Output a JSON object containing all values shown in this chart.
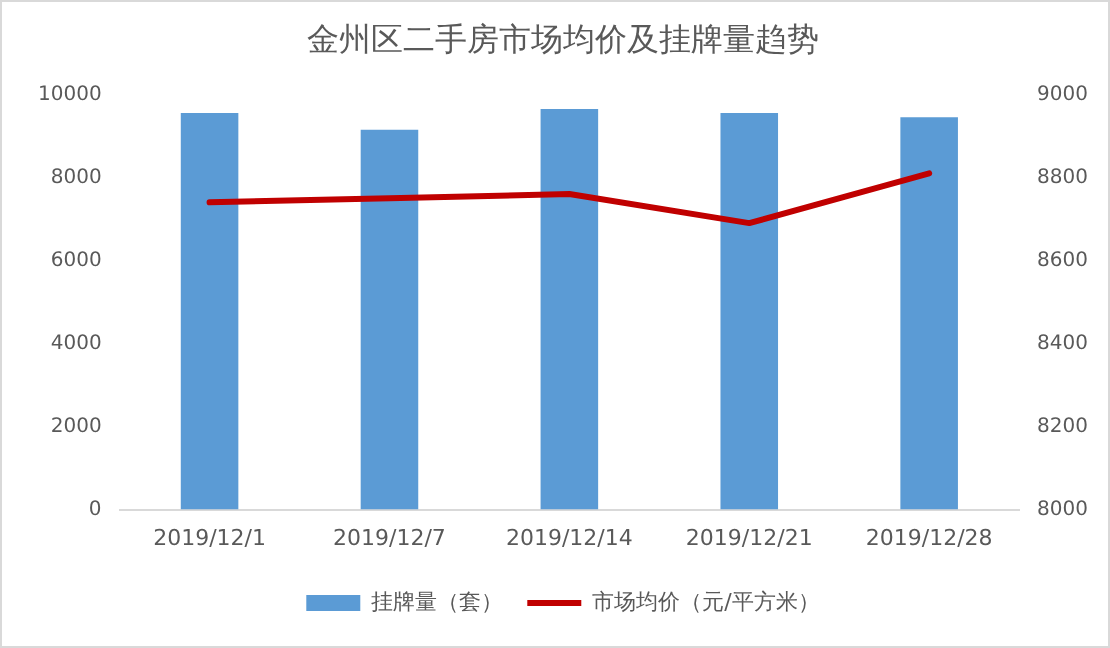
{
  "chart_data": {
    "type": "bar",
    "title": "金州区二手房市场均价及挂牌量趋势",
    "categories": [
      "2019/12/1",
      "2019/12/7",
      "2019/12/14",
      "2019/12/21",
      "2019/12/28"
    ],
    "series": [
      {
        "name": "挂牌量（套）",
        "color": "#5b9bd5",
        "values": [
          9550,
          9150,
          9650,
          9550,
          9450
        ]
      },
      {
        "name": "市场均价（元/平方米）",
        "type": "line",
        "axis": "y2",
        "color": "#c00000",
        "values": [
          8740,
          8750,
          8760,
          8690,
          8810
        ]
      }
    ],
    "ylim": [
      0,
      10000
    ],
    "yticks": [
      0,
      2000,
      4000,
      6000,
      8000,
      10000
    ],
    "y2lim": [
      8000,
      9000
    ],
    "y2ticks": [
      8000,
      8200,
      8400,
      8600,
      8800,
      9000
    ],
    "grid": false,
    "legend": "bottom",
    "marker": "none",
    "line_style": "solid"
  }
}
